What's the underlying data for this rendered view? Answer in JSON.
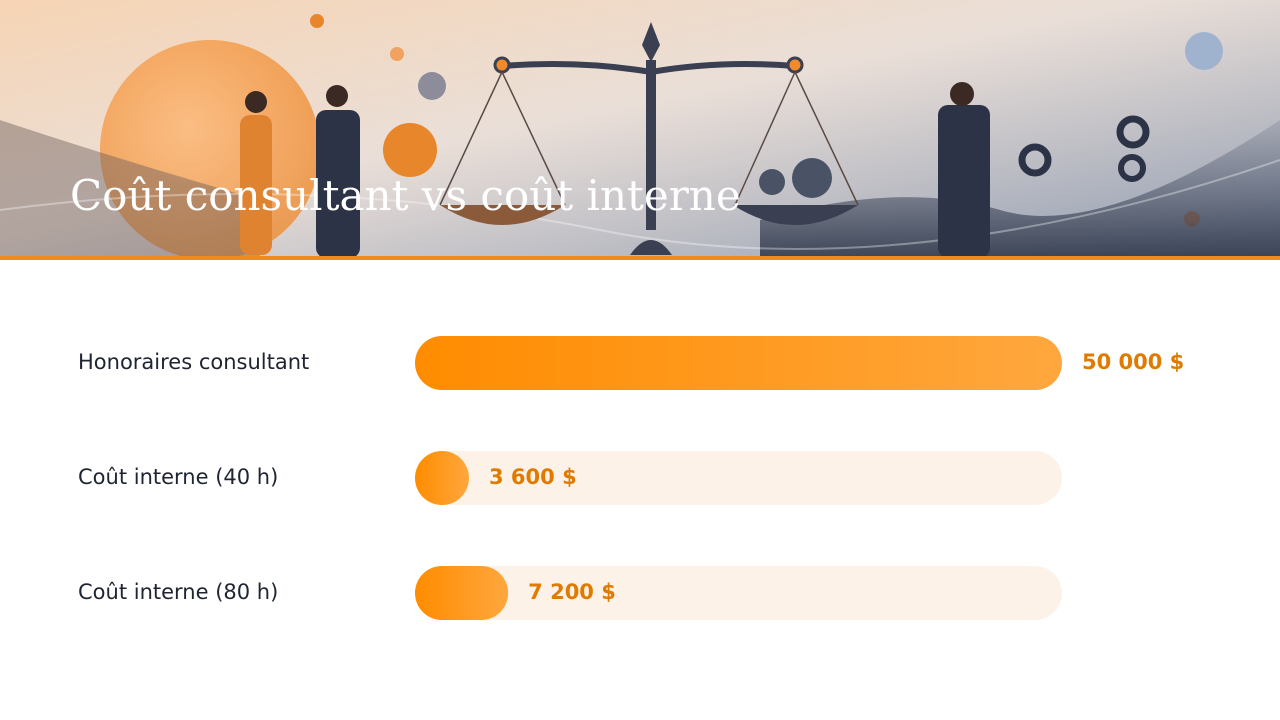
{
  "chart_data": {
    "type": "bar",
    "title": "Coût consultant vs coût interne",
    "categories": [
      "Honoraires consultant",
      "Coût interne (40 h)",
      "Coût interne (80 h)"
    ],
    "values": [
      50000,
      3600,
      7200
    ],
    "value_labels": [
      "50 000 $",
      "3 600 $",
      "7 200 $"
    ],
    "color": "#ff8c00"
  }
}
